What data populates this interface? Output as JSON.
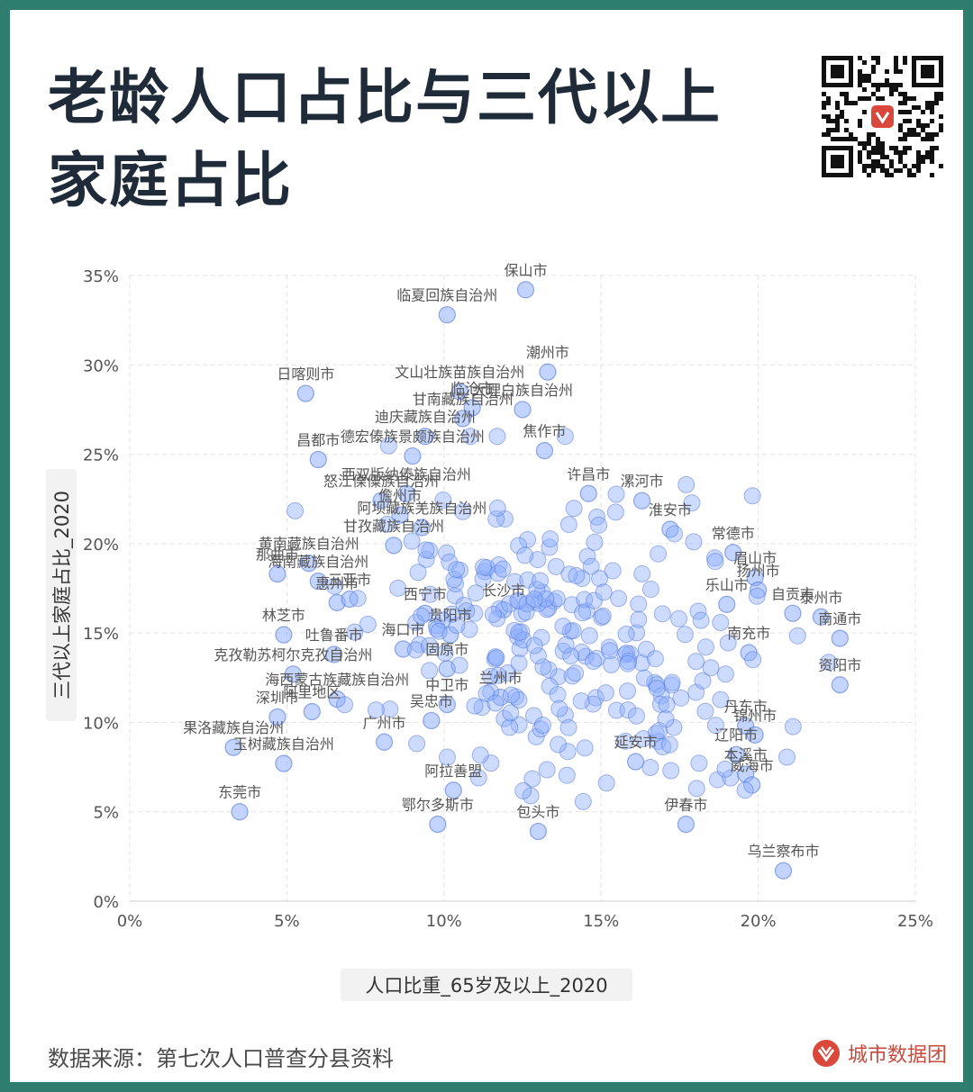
{
  "title_lines": [
    "老龄人口占比与三代以上",
    "家庭占比"
  ],
  "footer": {
    "source": "数据来源：第七次人口普查分县资料",
    "brand": "城市数据团"
  },
  "icons": {
    "qr": "qr-code-icon",
    "logo": "city-data-logo-icon"
  },
  "colors": {
    "accent": "#2f7d6e",
    "point_fill": "#8fb0ff",
    "point_stroke": "#4f73d8",
    "brand": "#d9483b"
  },
  "chart_data": {
    "type": "scatter",
    "title": "老龄人口占比与三代以上家庭占比",
    "xlabel": "人口比重_65岁及以上_2020",
    "ylabel": "三代以上家庭占比_2020",
    "xlim": [
      0,
      25
    ],
    "ylim": [
      0,
      35
    ],
    "xticks": [
      0,
      5,
      10,
      15,
      20,
      25
    ],
    "yticks": [
      0,
      5,
      10,
      15,
      20,
      25,
      30,
      35
    ],
    "tick_suffix": "%",
    "grid": true,
    "labeled_points": [
      {
        "name": "保山市",
        "x": 12.6,
        "y": 34.2
      },
      {
        "name": "临夏回族自治州",
        "x": 10.1,
        "y": 32.8
      },
      {
        "name": "潮州市",
        "x": 13.3,
        "y": 29.6
      },
      {
        "name": "日喀则市",
        "x": 5.6,
        "y": 28.4
      },
      {
        "name": "文山壮族苗族自治州",
        "x": 10.5,
        "y": 28.5
      },
      {
        "name": "临沧市",
        "x": 10.9,
        "y": 27.6
      },
      {
        "name": "大理白族自治州",
        "x": 12.5,
        "y": 27.5
      },
      {
        "name": "甘南藏族自治州",
        "x": 10.6,
        "y": 27.0
      },
      {
        "name": "迪庆藏族自治州",
        "x": 9.4,
        "y": 26.0
      },
      {
        "name": "焦作市",
        "x": 13.2,
        "y": 25.2
      },
      {
        "name": "昌都市",
        "x": 6.0,
        "y": 24.7
      },
      {
        "name": "德宏傣族景颇族自治州",
        "x": 9.0,
        "y": 24.9
      },
      {
        "name": "西双版纳傣族自治州",
        "x": 8.8,
        "y": 22.8
      },
      {
        "name": "怒江傈僳族自治州",
        "x": 8.0,
        "y": 22.4
      },
      {
        "name": "许昌市",
        "x": 14.6,
        "y": 22.8
      },
      {
        "name": "漯河市",
        "x": 16.3,
        "y": 22.4
      },
      {
        "name": "淮安市",
        "x": 17.2,
        "y": 20.8
      },
      {
        "name": "儋州市",
        "x": 8.6,
        "y": 21.6
      },
      {
        "name": "阿坝藏族羌族自治州",
        "x": 9.3,
        "y": 20.9
      },
      {
        "name": "甘孜藏族自治州",
        "x": 8.4,
        "y": 19.9
      },
      {
        "name": "常德市",
        "x": 19.2,
        "y": 19.5
      },
      {
        "name": "那曲市",
        "x": 4.7,
        "y": 18.3
      },
      {
        "name": "黄南藏族自治州",
        "x": 5.7,
        "y": 18.9
      },
      {
        "name": "海南藏族自治州",
        "x": 6.0,
        "y": 17.9
      },
      {
        "name": "眉山市",
        "x": 19.9,
        "y": 18.1
      },
      {
        "name": "扬州市",
        "x": 20.0,
        "y": 17.4
      },
      {
        "name": "乐山市",
        "x": 19.0,
        "y": 16.6
      },
      {
        "name": "自贡市",
        "x": 21.1,
        "y": 16.1
      },
      {
        "name": "泰州市",
        "x": 22.0,
        "y": 15.9
      },
      {
        "name": "南通市",
        "x": 22.6,
        "y": 14.7
      },
      {
        "name": "林芝市",
        "x": 4.9,
        "y": 14.9
      },
      {
        "name": "惠州市",
        "x": 6.6,
        "y": 16.7
      },
      {
        "name": "三亚市",
        "x": 7.0,
        "y": 16.9
      },
      {
        "name": "吐鲁番市",
        "x": 6.5,
        "y": 13.8
      },
      {
        "name": "克孜勒苏柯尔克孜自治州",
        "x": 5.2,
        "y": 12.7
      },
      {
        "name": "南充市",
        "x": 19.7,
        "y": 13.9
      },
      {
        "name": "资阳市",
        "x": 22.6,
        "y": 12.1
      },
      {
        "name": "海西蒙古族藏族自治州",
        "x": 6.6,
        "y": 11.3
      },
      {
        "name": "阿里地区",
        "x": 5.8,
        "y": 10.6
      },
      {
        "name": "深圳市",
        "x": 4.7,
        "y": 10.3
      },
      {
        "name": "果洛藏族自治州",
        "x": 3.3,
        "y": 8.6
      },
      {
        "name": "玉树藏族自治州",
        "x": 4.9,
        "y": 7.7
      },
      {
        "name": "东莞市",
        "x": 3.5,
        "y": 5.0
      },
      {
        "name": "丹东市",
        "x": 19.6,
        "y": 9.8
      },
      {
        "name": "锦州市",
        "x": 19.9,
        "y": 9.3
      },
      {
        "name": "辽阳市",
        "x": 19.3,
        "y": 8.2
      },
      {
        "name": "本溪市",
        "x": 19.6,
        "y": 7.1
      },
      {
        "name": "威海市",
        "x": 19.8,
        "y": 6.5
      },
      {
        "name": "伊春市",
        "x": 17.7,
        "y": 4.3
      },
      {
        "name": "乌兰察布市",
        "x": 20.8,
        "y": 1.7
      },
      {
        "name": "中卫市",
        "x": 10.1,
        "y": 11.0
      },
      {
        "name": "广州市",
        "x": 8.1,
        "y": 8.9
      },
      {
        "name": "吴忠市",
        "x": 9.6,
        "y": 10.1
      },
      {
        "name": "鄂尔多斯市",
        "x": 9.8,
        "y": 4.3
      },
      {
        "name": "阿拉善盟",
        "x": 10.3,
        "y": 6.2
      },
      {
        "name": "包头市",
        "x": 13.0,
        "y": 3.9
      },
      {
        "name": "固原市",
        "x": 10.1,
        "y": 13.0
      },
      {
        "name": "兰州市",
        "x": 11.8,
        "y": 11.4
      },
      {
        "name": "西宁市",
        "x": 9.4,
        "y": 16.1
      },
      {
        "name": "贵阳市",
        "x": 10.2,
        "y": 14.9
      },
      {
        "name": "海口市",
        "x": 8.7,
        "y": 14.1
      },
      {
        "name": "延安市",
        "x": 16.1,
        "y": 7.8
      },
      {
        "name": "长沙市",
        "x": 11.9,
        "y": 16.3
      }
    ]
  }
}
